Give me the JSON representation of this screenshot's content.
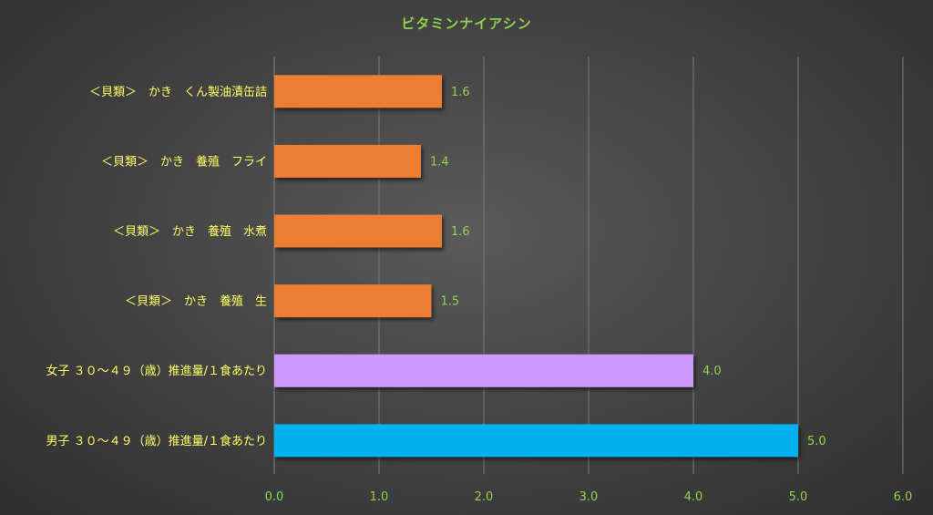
{
  "chart_data": {
    "type": "bar",
    "orientation": "horizontal",
    "title": "ビタミンナイアシン",
    "xlabel": "",
    "ylabel": "",
    "xlim": [
      0,
      6
    ],
    "x_ticks": [
      "0.0",
      "1.0",
      "2.0",
      "3.0",
      "4.0",
      "5.0",
      "6.0"
    ],
    "grid": "vertical",
    "legend": "none",
    "categories": [
      "＜貝類＞　かき　くん製油漬缶詰",
      "＜貝類＞　かき　養殖　フライ",
      "＜貝類＞　かき　養殖　水煮",
      "＜貝類＞　かき　養殖　生",
      "女子 ３０～４９（歳）推進量/１食あたり",
      "男子 ３０～４９（歳）推進量/１食あたり"
    ],
    "values": [
      1.6,
      1.4,
      1.6,
      1.5,
      4.0,
      5.0
    ],
    "data_labels": [
      "1.6",
      "1.4",
      "1.6",
      "1.5",
      "4.0",
      "5.0"
    ],
    "bar_colors": [
      "#ED7D31",
      "#ED7D31",
      "#ED7D31",
      "#ED7D31",
      "#CC99FF",
      "#00B0F0"
    ],
    "colors": {
      "title": "#92D050",
      "category_label": "#FFFF66",
      "tick_label": "#92D050",
      "data_label": "#92D050",
      "gridline": "#7a7a7a"
    }
  }
}
